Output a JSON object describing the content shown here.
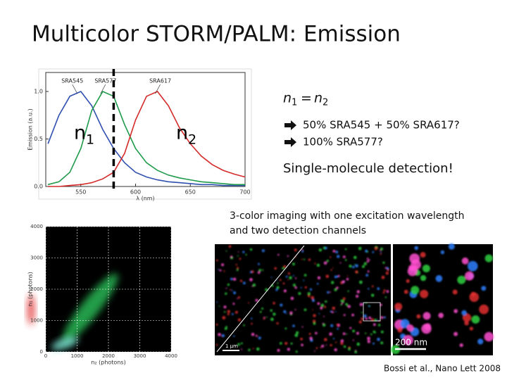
{
  "slide": {
    "title": "Multicolor STORM/PALM: Emission",
    "equation": {
      "left": "n",
      "left_sub": "1",
      "op": "=",
      "right": "n",
      "right_sub": "2"
    },
    "bullets": [
      "50% SRA545 + 50% SRA617?",
      "100% SRA577?"
    ],
    "highlight": "Single-molecule detection!",
    "caption_lines": [
      "3-color imaging with one excitation wavelength",
      "and two detection channels"
    ],
    "overlay_labels": [
      {
        "base": "n",
        "sub": "1"
      },
      {
        "base": "n",
        "sub": "2"
      }
    ],
    "scale_bars": [
      "1 μm",
      "200 nm"
    ],
    "citation": "Bossi et al., Nano Lett 2008"
  },
  "chart_data": {
    "type": "line",
    "xlabel": "λ (nm)",
    "ylabel": "Emission (a.u.)",
    "x": [
      520,
      530,
      540,
      550,
      560,
      570,
      580,
      590,
      600,
      610,
      620,
      630,
      640,
      650,
      660,
      670,
      680,
      690,
      700
    ],
    "xlim": [
      518,
      700
    ],
    "xticks": [
      550,
      600,
      650,
      700
    ],
    "ylim": [
      0,
      1.2
    ],
    "yticks": [
      {
        "value": 0,
        "label": "0.0"
      },
      {
        "value": 0.5,
        "label": "0.5"
      },
      {
        "value": 1,
        "label": "1.0"
      }
    ],
    "vline": 580,
    "series": [
      {
        "name": "SRA545",
        "color": "#3050b0",
        "values": [
          0.45,
          0.75,
          0.95,
          1.0,
          0.85,
          0.6,
          0.4,
          0.25,
          0.15,
          0.1,
          0.07,
          0.05,
          0.04,
          0.03,
          0.02,
          0.02,
          0.01,
          0.01,
          0.01
        ]
      },
      {
        "name": "SRA577",
        "color": "#1e9a4a",
        "values": [
          0.02,
          0.05,
          0.15,
          0.4,
          0.8,
          1.0,
          0.95,
          0.65,
          0.4,
          0.25,
          0.17,
          0.12,
          0.09,
          0.07,
          0.05,
          0.04,
          0.03,
          0.02,
          0.02
        ]
      },
      {
        "name": "SRA617",
        "color": "#d42a2a",
        "values": [
          0,
          0,
          0.01,
          0.02,
          0.04,
          0.08,
          0.15,
          0.35,
          0.7,
          0.95,
          1.0,
          0.85,
          0.62,
          0.45,
          0.32,
          0.23,
          0.17,
          0.13,
          0.1
        ]
      }
    ]
  },
  "histogram_image": {
    "xlabel": "n₂ (photons)",
    "ylabel": "n₁ (photons)",
    "xlim": [
      0,
      4000
    ],
    "ylim": [
      0,
      4000
    ],
    "xticks": [
      0,
      1000,
      2000,
      3000,
      4000
    ],
    "yticks": [
      0,
      1000,
      2000,
      3000,
      4000
    ]
  }
}
